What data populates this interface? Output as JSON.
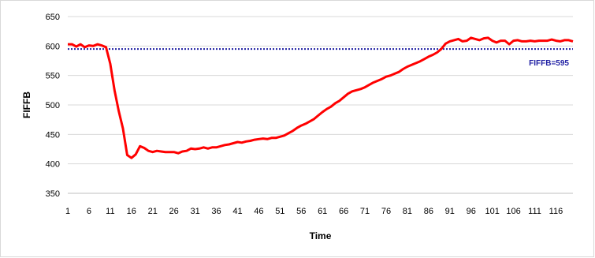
{
  "chart_data": {
    "type": "line",
    "xlabel": "Time",
    "ylabel": "FIFFB",
    "ylim": [
      350,
      650
    ],
    "yticks": [
      350,
      400,
      450,
      500,
      550,
      600,
      650
    ],
    "xticks": [
      1,
      6,
      11,
      16,
      21,
      26,
      31,
      36,
      41,
      46,
      51,
      56,
      61,
      66,
      71,
      76,
      81,
      86,
      91,
      96,
      101,
      106,
      111,
      116
    ],
    "xlim": [
      1,
      120
    ],
    "grid": "horizontal",
    "legend": "none",
    "series": [
      {
        "color": "#ff0000",
        "x": [
          1,
          2,
          3,
          4,
          5,
          6,
          7,
          8,
          9,
          10,
          11,
          12,
          13,
          14,
          15,
          16,
          17,
          18,
          19,
          20,
          21,
          22,
          23,
          24,
          25,
          26,
          27,
          28,
          29,
          30,
          31,
          32,
          33,
          34,
          35,
          36,
          37,
          38,
          39,
          40,
          41,
          42,
          43,
          44,
          45,
          46,
          47,
          48,
          49,
          50,
          51,
          52,
          53,
          54,
          55,
          56,
          57,
          58,
          59,
          60,
          61,
          62,
          63,
          64,
          65,
          66,
          67,
          68,
          69,
          70,
          71,
          72,
          73,
          74,
          75,
          76,
          77,
          78,
          79,
          80,
          81,
          82,
          83,
          84,
          85,
          86,
          87,
          88,
          89,
          90,
          91,
          92,
          93,
          94,
          95,
          96,
          97,
          98,
          99,
          100,
          101,
          102,
          103,
          104,
          105,
          106,
          107,
          108,
          109,
          110,
          111,
          112,
          113,
          114,
          115,
          116,
          117,
          118,
          119,
          120
        ],
        "values": [
          603,
          603,
          599,
          603,
          598,
          601,
          600,
          603,
          601,
          598,
          570,
          525,
          490,
          460,
          415,
          410,
          416,
          430,
          427,
          422,
          420,
          422,
          421,
          420,
          420,
          420,
          418,
          421,
          422,
          426,
          425,
          426,
          428,
          426,
          428,
          428,
          430,
          432,
          433,
          435,
          437,
          436,
          438,
          439,
          441,
          442,
          443,
          442,
          444,
          444,
          446,
          448,
          452,
          456,
          461,
          465,
          468,
          472,
          476,
          482,
          488,
          493,
          497,
          503,
          507,
          513,
          519,
          523,
          525,
          527,
          530,
          534,
          538,
          541,
          544,
          548,
          550,
          553,
          556,
          561,
          565,
          568,
          571,
          574,
          578,
          582,
          585,
          589,
          595,
          604,
          608,
          610,
          612,
          608,
          609,
          614,
          612,
          610,
          613,
          614,
          609,
          606,
          609,
          609,
          603,
          609,
          610,
          608,
          608,
          609,
          608,
          609,
          609,
          609,
          611,
          609,
          608,
          610,
          610,
          608
        ]
      }
    ],
    "reference_line": {
      "value": 595,
      "label": "FIFFB=595",
      "color": "#1f1fa3",
      "style": "dotted"
    }
  }
}
